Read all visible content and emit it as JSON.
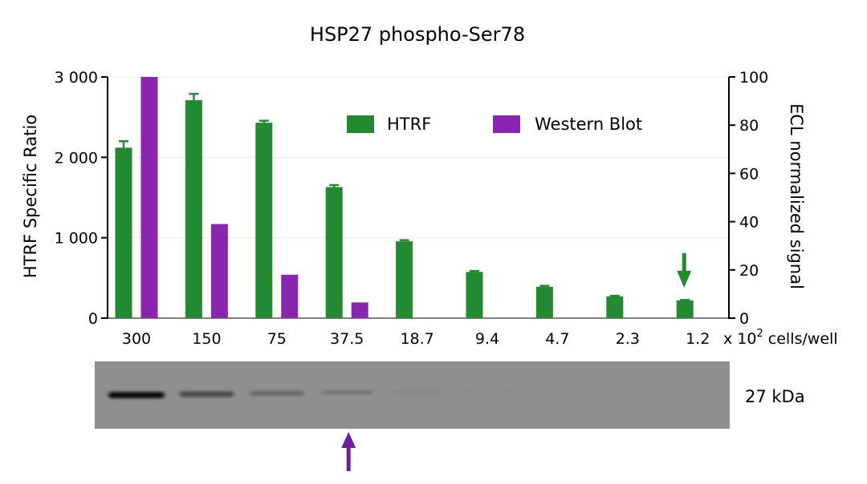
{
  "chart_data": {
    "type": "bar",
    "title": "HSP27 phospho-Ser78",
    "categories": [
      "300",
      "150",
      "75",
      "37.5",
      "18.7",
      "9.4",
      "4.7",
      "2.3",
      "1.2"
    ],
    "xlabel": "x 10",
    "xlabel_sup": "2",
    "xlabel_suffix": " cells/well",
    "ylabel_left": "HTRF Specific Ratio",
    "ylabel_right": "ECL normalized signal",
    "ylim_left": [
      0,
      3000
    ],
    "ylim_right": [
      0,
      100
    ],
    "yticks_left": [
      "0",
      "1 000",
      "2 000",
      "3 000"
    ],
    "yticks_right": [
      "0",
      "20",
      "40",
      "60",
      "80",
      "100"
    ],
    "grid": true,
    "legend_position": "top-right",
    "series": [
      {
        "name": "HTRF",
        "axis": "left",
        "color": "#248a31",
        "values": [
          2120,
          2710,
          2430,
          1630,
          955,
          575,
          390,
          270,
          220
        ],
        "errors": [
          80,
          80,
          25,
          25,
          15,
          12,
          12,
          8,
          6
        ]
      },
      {
        "name": "Western Blot",
        "axis": "right",
        "color": "#8a25b0",
        "values": [
          100,
          39,
          18,
          6.5,
          0,
          0,
          0,
          0,
          0
        ]
      }
    ],
    "annotations": {
      "blot_label": "27 kDa",
      "blot_band_intensity": [
        1.0,
        0.55,
        0.35,
        0.18,
        0.06,
        0.03,
        0.01,
        0,
        0
      ],
      "green_arrow_category": "1.2",
      "purple_arrow_category": "37.5",
      "green_arrow_color": "#248a31",
      "purple_arrow_color": "#6a1fa0"
    }
  }
}
